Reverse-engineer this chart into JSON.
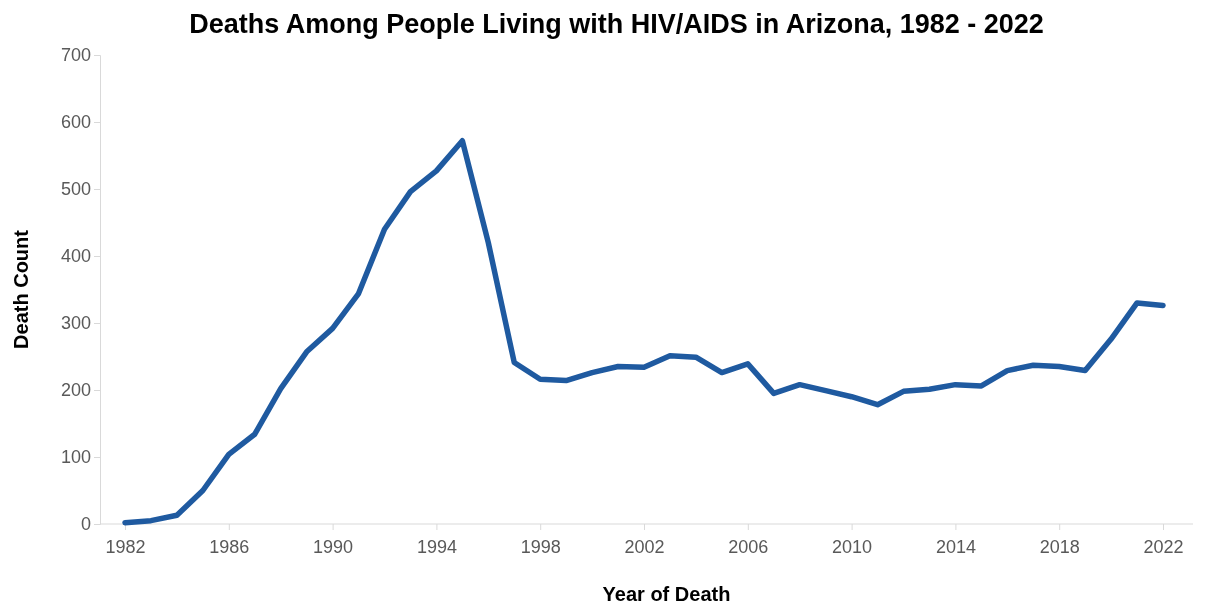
{
  "chart_data": {
    "type": "line",
    "title": "Deaths Among People Living with HIV/AIDS in Arizona, 1982 - 2022",
    "xlabel": "Year of Death",
    "ylabel": "Death Count",
    "categories": [
      "1982",
      null,
      null,
      null,
      "1986",
      null,
      null,
      null,
      "1990",
      null,
      null,
      null,
      "1994",
      null,
      null,
      null,
      "1998",
      null,
      null,
      null,
      "2002",
      null,
      null,
      null,
      "2006",
      null,
      null,
      null,
      "2010",
      null,
      null,
      null,
      "2014",
      null,
      null,
      null,
      "2018",
      null,
      null,
      null,
      "2022"
    ],
    "series": [
      {
        "color": "#1f5aa0",
        "values": [
          2,
          5,
          13,
          50,
          104,
          134,
          202,
          257,
          292,
          344,
          440,
          496,
          527,
          572,
          420,
          241,
          216,
          214,
          226,
          235,
          234,
          251,
          249,
          226,
          239,
          195,
          208,
          199,
          190,
          178,
          198,
          201,
          208,
          206,
          229,
          237,
          235,
          229,
          276,
          330,
          326
        ]
      }
    ],
    "ylim": [
      0,
      700
    ],
    "yticks": [
      0,
      100,
      200,
      300,
      400,
      500,
      600,
      700
    ],
    "marker": "none",
    "line_style": "solid"
  }
}
